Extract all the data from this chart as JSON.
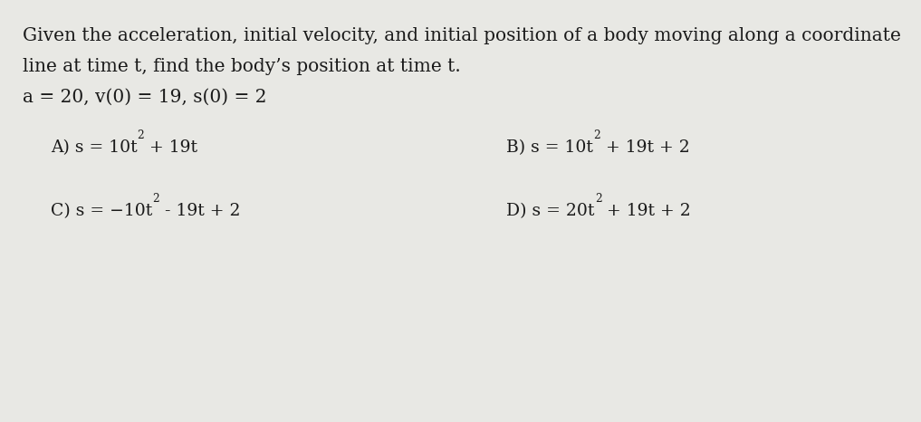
{
  "background_color": "#e8e8e4",
  "text_color": "#1a1a1a",
  "title_line1": "Given the acceleration, initial velocity, and initial position of a body moving along a coordinate",
  "title_line2": "line at time t, find the body’s position at time t.",
  "given": "a = 20, v(0) = 19, s(0) = 2",
  "optionA_prefix": "A) s = 10t",
  "optionA_sup": "2",
  "optionA_suffix": " + 19t",
  "optionB_prefix": "B) s = 10t",
  "optionB_sup": "2",
  "optionB_suffix": " + 19t + 2",
  "optionC_prefix": "C) s = −10t",
  "optionC_sup": "2",
  "optionC_suffix": " - 19t + 2",
  "optionD_prefix": "D) s = 20t",
  "optionD_sup": "2",
  "optionD_suffix": " + 19t + 2",
  "font_size_body": 14.5,
  "font_size_options": 13.5,
  "font_family": "DejaVu Serif"
}
